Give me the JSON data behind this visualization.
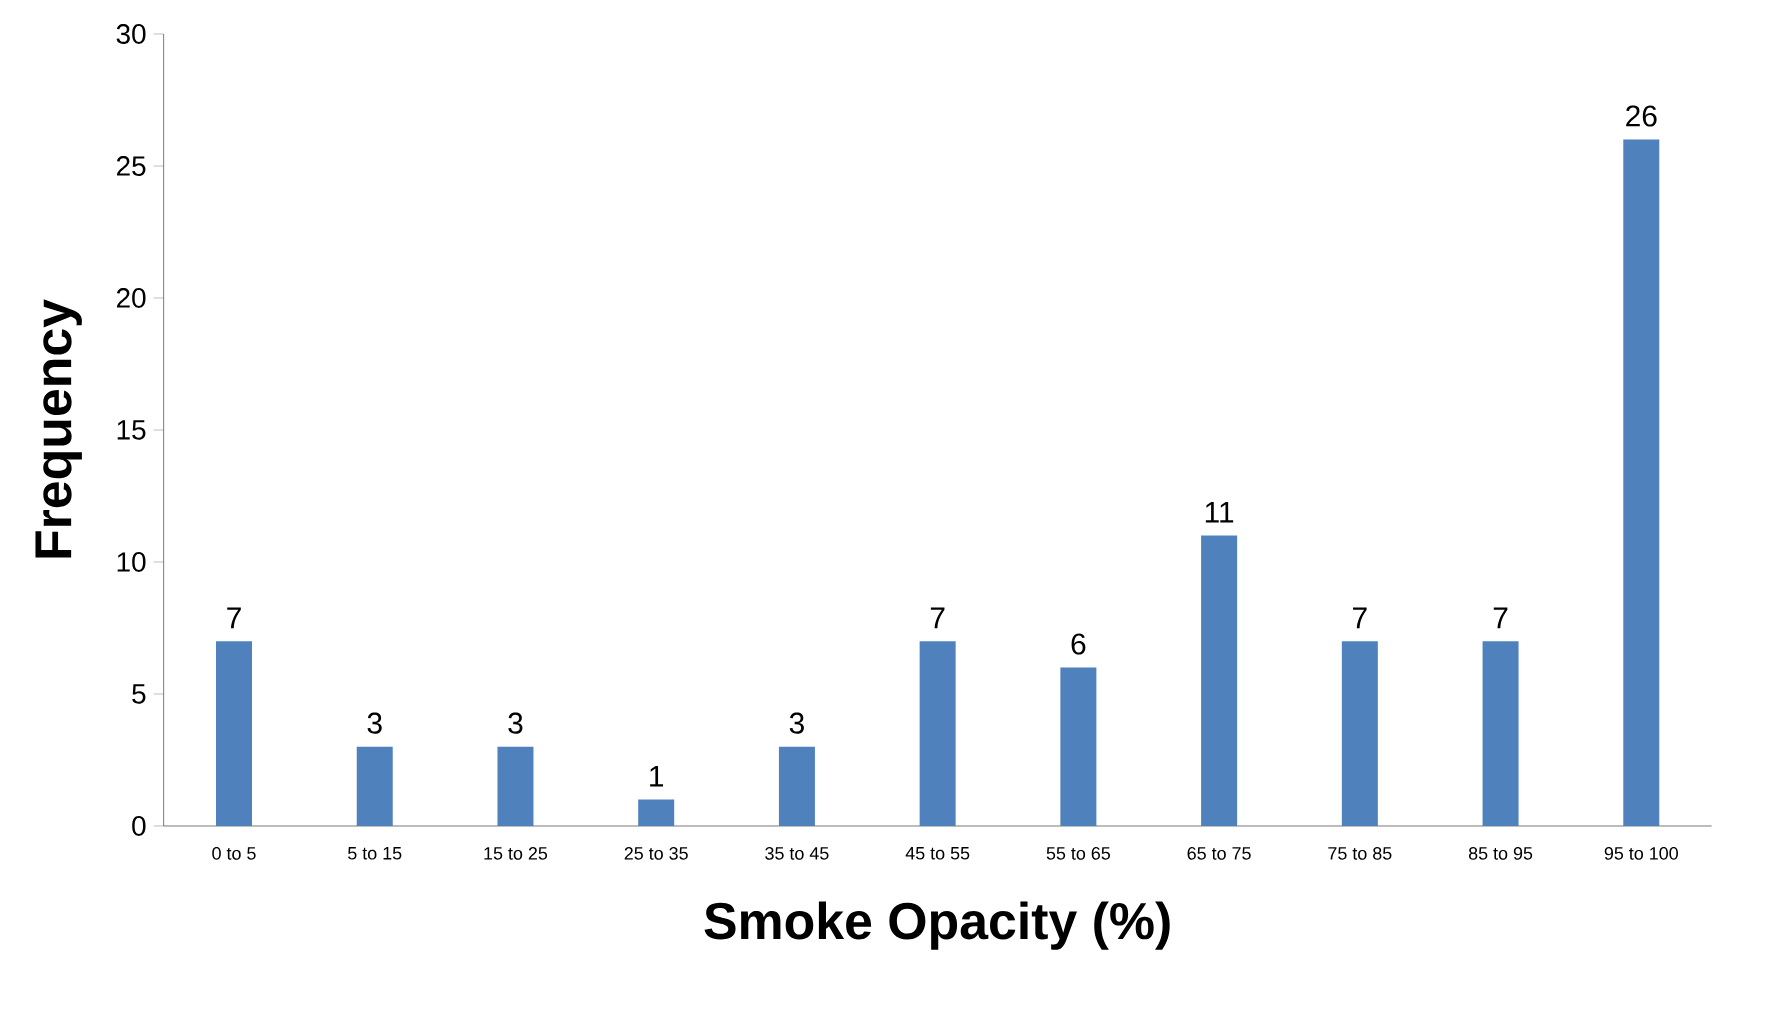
{
  "chart_data": {
    "type": "bar",
    "xlabel": "Smoke Opacity (%)",
    "ylabel": "Frequency",
    "categories": [
      "0 to 5",
      "5 to 15",
      "15 to 25",
      "25 to 35",
      "35 to 45",
      "45 to 55",
      "55 to 65",
      "65 to 75",
      "75 to 85",
      "85 to 95",
      "95 to 100"
    ],
    "values": [
      7,
      3,
      3,
      1,
      3,
      7,
      6,
      11,
      7,
      7,
      26
    ],
    "color": "#4f81bd",
    "ylim": [
      0,
      30
    ],
    "yticks": [
      0,
      5,
      10,
      15,
      20,
      25,
      30
    ],
    "data_labels": true,
    "grid": false
  }
}
